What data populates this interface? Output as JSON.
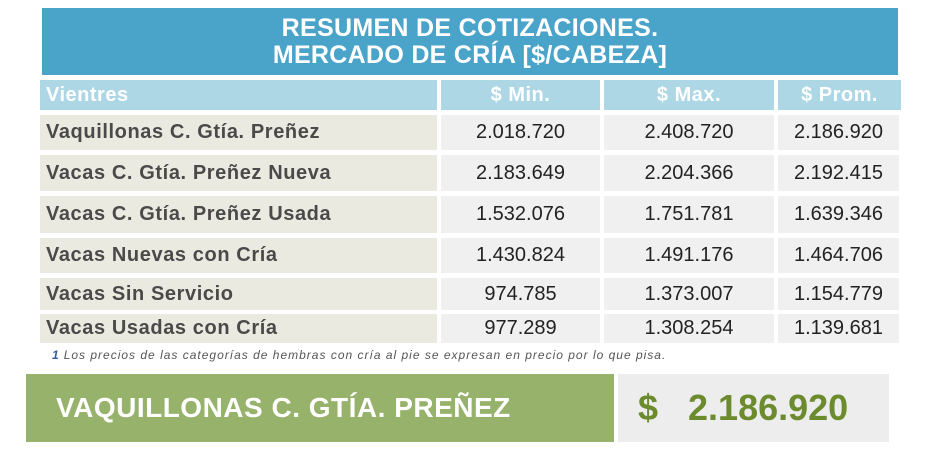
{
  "title": {
    "line1": "RESUMEN DE COTIZACIONES.",
    "line2": "MERCADO DE CRÍA [$/CABEZA]"
  },
  "headers": {
    "category": "Vientres",
    "min": "$ Min.",
    "max": "$ Max.",
    "avg": "$ Prom."
  },
  "rows": [
    {
      "category": "Vaquillonas C. Gtía. Preñez",
      "min": "2.018.720",
      "max": "2.408.720",
      "avg": "2.186.920"
    },
    {
      "category": "Vacas C. Gtía. Preñez Nueva",
      "min": "2.183.649",
      "max": "2.204.366",
      "avg": "2.192.415"
    },
    {
      "category": "Vacas C. Gtía. Preñez Usada",
      "min": "1.532.076",
      "max": "1.751.781",
      "avg": "1.639.346"
    },
    {
      "category": "Vacas Nuevas con Cría",
      "min": "1.430.824",
      "max": "1.491.176",
      "avg": "1.464.706"
    },
    {
      "category": "Vacas Sin Servicio",
      "min": "974.785",
      "max": "1.373.007",
      "avg": "1.154.779"
    },
    {
      "category": "Vacas Usadas con Cría",
      "min": "977.289",
      "max": "1.308.254",
      "avg": "1.139.681"
    }
  ],
  "footnote": {
    "mark": "1",
    "text": "Los precios de las categorías de hembras con cría al pie se expresan en precio por lo que pisa."
  },
  "highlight": {
    "category": "VAQUILLONAS C. GTÍA. PREÑEZ",
    "currency": "$",
    "value": "2.186.920"
  },
  "colors": {
    "title_bg": "#4aa3c8",
    "header_bg": "#aed7e6",
    "category_cell_bg": "#ebeae0",
    "number_cell_bg": "#f0f0f0",
    "highlight_bg": "#97b26b",
    "highlight_value_text": "#6c8a2e"
  }
}
